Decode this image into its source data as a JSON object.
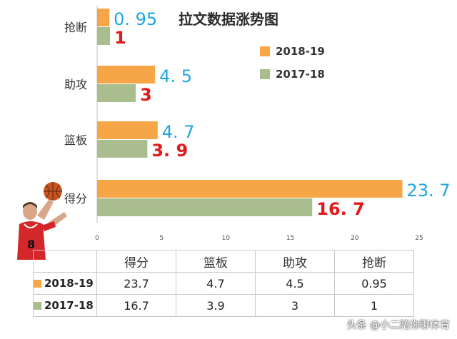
{
  "chart_data": {
    "type": "bar",
    "orientation": "horizontal",
    "title": "拉文数据涨势图",
    "categories": [
      "抢断",
      "助攻",
      "篮板",
      "得分"
    ],
    "series": [
      {
        "name": "2018-19",
        "color": "#f6a647",
        "value_color": "#1fa6e0",
        "values": [
          0.95,
          4.5,
          4.7,
          23.7
        ],
        "labels": [
          "0. 95",
          "4. 5",
          "4. 7",
          "23. 7"
        ]
      },
      {
        "name": "2017-18",
        "color": "#a9bd8f",
        "value_color": "#e11b1b",
        "values": [
          1,
          3,
          3.9,
          16.7
        ],
        "labels": [
          "1",
          "3",
          "3. 9",
          "16. 7"
        ]
      }
    ],
    "xlim": [
      0,
      25
    ],
    "xticks": [
      0,
      5,
      10,
      15,
      20,
      25
    ],
    "legend_position": "right",
    "grid": false
  },
  "table": {
    "header": [
      "",
      "得分",
      "篮板",
      "助攻",
      "抢断"
    ],
    "rows": [
      {
        "season": "2018-19",
        "color": "#f6a647",
        "cells": [
          "23.7",
          "4.7",
          "4.5",
          "0.95"
        ]
      },
      {
        "season": "2017-18",
        "color": "#a9bd8f",
        "cells": [
          "16.7",
          "3.9",
          "3",
          "1"
        ]
      }
    ]
  },
  "player": {
    "jersey_number": "8",
    "colors": {
      "jersey": "#d3272b",
      "skin": "#d8a787",
      "ball": "#c8531f"
    }
  },
  "watermark": "头条 @小二陪你聊体育"
}
